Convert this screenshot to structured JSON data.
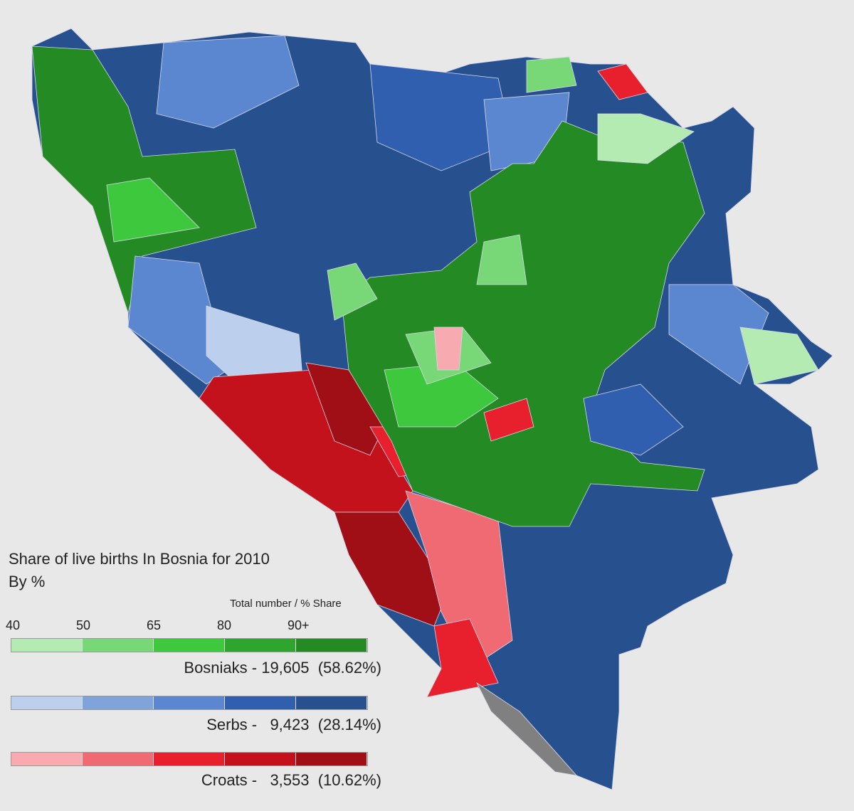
{
  "legend": {
    "title": "Share of live births In Bosnia for 2010",
    "subtitle": "By %",
    "scale_caption": "Total number / % Share",
    "ticks": [
      "40",
      "50",
      "65",
      "80",
      "90+"
    ],
    "groups": [
      {
        "text": "Bosniaks - 19,605  (58.62%)",
        "colors": [
          "#b3ebb3",
          "#78d878",
          "#3ec83e",
          "#2ea52e",
          "#248a24"
        ]
      },
      {
        "text": "Serbs -   9,423  (28.14%)",
        "colors": [
          "#bcd0ee",
          "#7fa4dc",
          "#5b87d0",
          "#2f5fae",
          "#27508e"
        ]
      },
      {
        "text": "Croats -   3,553  (10.62%)",
        "colors": [
          "#f7aab0",
          "#f06a74",
          "#e8202e",
          "#c4121c",
          "#a00e16"
        ]
      }
    ]
  }
}
